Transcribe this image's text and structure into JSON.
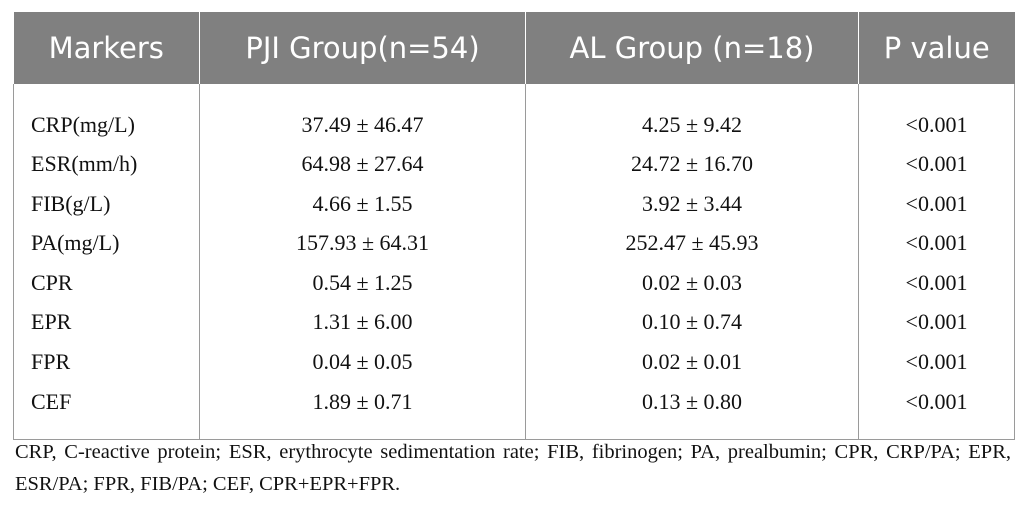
{
  "table": {
    "headers": [
      "Markers",
      "PJI Group(n=54)",
      "AL Group (n=18)",
      "P value"
    ],
    "rows": [
      [
        "CRP(mg/L)",
        "37.49 ± 46.47",
        "4.25 ± 9.42",
        "<0.001"
      ],
      [
        "ESR(mm/h)",
        "64.98 ± 27.64",
        "24.72 ± 16.70",
        "<0.001"
      ],
      [
        "FIB(g/L)",
        "4.66 ± 1.55",
        "3.92 ± 3.44",
        "<0.001"
      ],
      [
        "PA(mg/L)",
        "157.93 ± 64.31",
        "252.47 ± 45.93",
        "<0.001"
      ],
      [
        "CPR",
        "0.54 ± 1.25",
        "0.02 ± 0.03",
        "<0.001"
      ],
      [
        "EPR",
        "1.31 ± 6.00",
        "0.10 ± 0.74",
        "<0.001"
      ],
      [
        "FPR",
        "0.04 ± 0.05",
        "0.02 ± 0.01",
        "<0.001"
      ],
      [
        "CEF",
        "1.89 ± 0.71",
        "0.13 ± 0.80",
        "<0.001"
      ]
    ]
  },
  "footnote": "CRP, C-reactive protein; ESR, erythrocyte sedimentation rate; FIB, fibrinogen; PA, prealbumin; CPR, CRP/PA; EPR, ESR/PA; FPR, FIB/PA; CEF, CPR+EPR+FPR."
}
